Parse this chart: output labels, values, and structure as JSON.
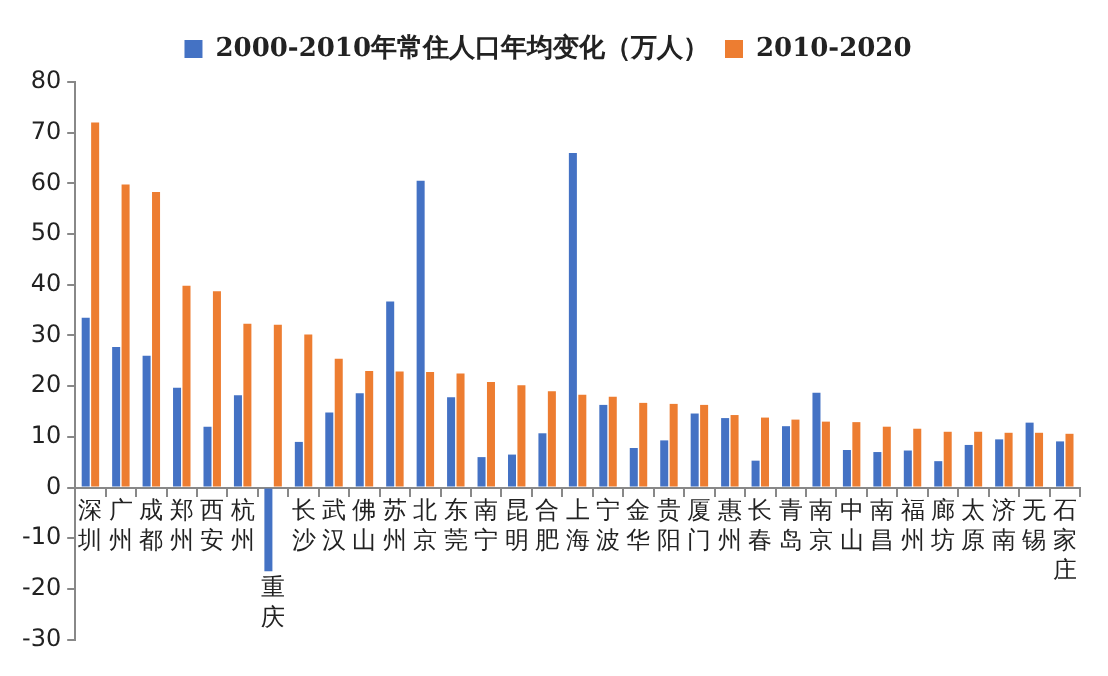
{
  "chart_data": {
    "type": "bar",
    "categories": [
      "深圳",
      "广州",
      "成都",
      "郑州",
      "西安",
      "杭州",
      "重庆",
      "长沙",
      "武汉",
      "佛山",
      "苏州",
      "北京",
      "东莞",
      "南宁",
      "昆明",
      "合肥",
      "上海",
      "宁波",
      "金华",
      "贵阳",
      "厦门",
      "惠州",
      "长春",
      "青岛",
      "南京",
      "中山",
      "南昌",
      "福州",
      "廊坊",
      "太原",
      "济南",
      "无锡",
      "石家庄"
    ],
    "series": [
      {
        "name": "2000-2010年常住人口年均变化（万人）",
        "color": "#4472c4",
        "values": [
          33.5,
          27.7,
          26,
          19.7,
          12,
          18.2,
          -16.5,
          9,
          14.8,
          18.6,
          36.7,
          60.5,
          17.8,
          6,
          6.5,
          10.7,
          66,
          16.3,
          7.8,
          9.3,
          14.6,
          13.7,
          5.3,
          12.1,
          18.7,
          7.4,
          7,
          7.3,
          5.2,
          8.4,
          9.5,
          12.8,
          9.1
        ]
      },
      {
        "name": "2010-2020",
        "color": "#ed7d31",
        "values": [
          72,
          59.8,
          58.3,
          39.8,
          38.7,
          32.3,
          32.1,
          30.2,
          25.4,
          23,
          22.9,
          22.8,
          22.5,
          20.8,
          20.2,
          19,
          18.3,
          17.9,
          16.7,
          16.5,
          16.3,
          14.3,
          13.8,
          13.4,
          13,
          12.9,
          12,
          11.6,
          11,
          11,
          10.8,
          10.8,
          10.6
        ]
      }
    ],
    "ylim": [
      -30,
      80
    ],
    "yticks": [
      -30,
      -20,
      -10,
      0,
      10,
      20,
      30,
      40,
      50,
      60,
      70,
      80
    ],
    "grid": false,
    "legend": "top"
  }
}
